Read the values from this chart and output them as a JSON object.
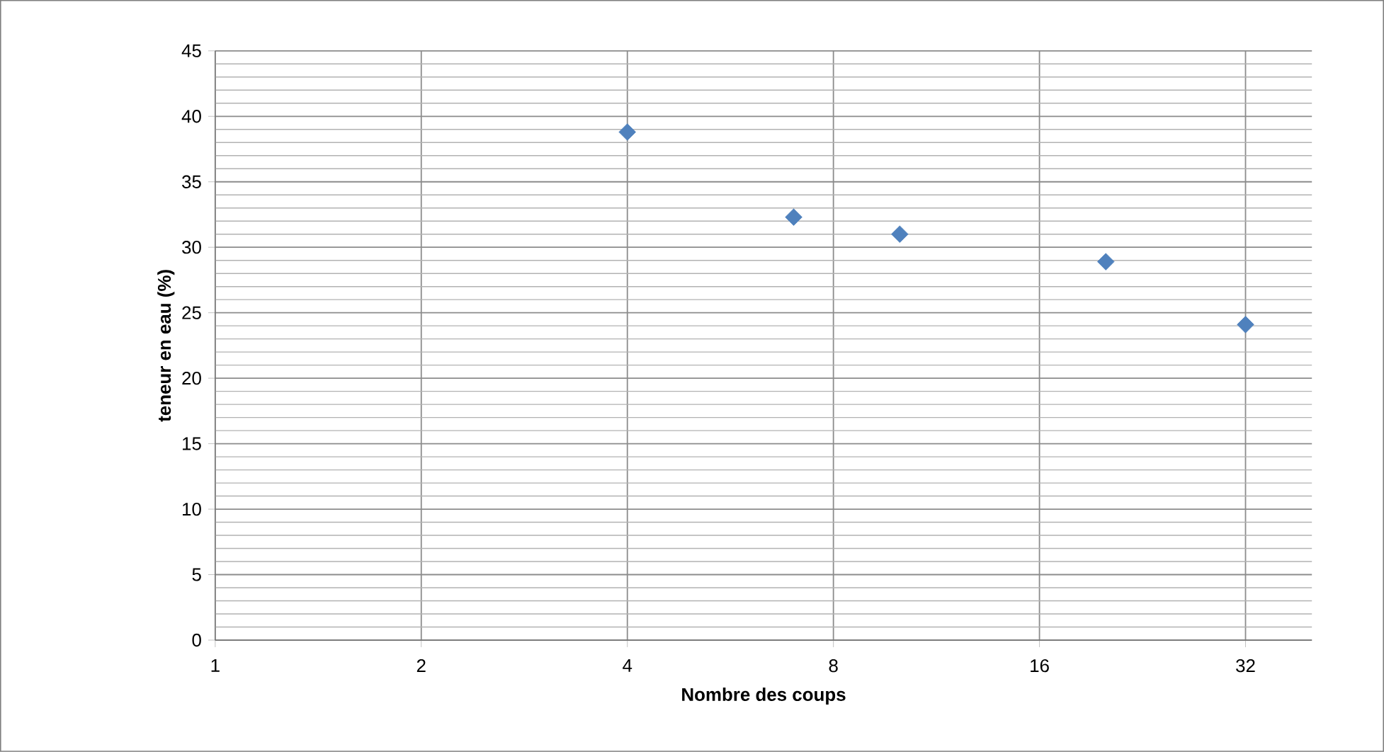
{
  "chart_data": {
    "type": "scatter",
    "xlabel": "Nombre des coups",
    "ylabel": "teneur en eau (%)",
    "x": [
      4,
      7,
      10,
      20,
      32
    ],
    "values": [
      38.8,
      32.3,
      31.0,
      28.9,
      24.1
    ],
    "color": "#4f81bd",
    "marker": "diamond",
    "log": "x",
    "xlim": [
      1,
      40
    ],
    "xticks": [
      1,
      2,
      4,
      8,
      16,
      32
    ],
    "ylim": [
      0,
      45
    ],
    "yticks": [
      0,
      5,
      10,
      15,
      20,
      25,
      30,
      35,
      40,
      45
    ],
    "grid": true
  }
}
